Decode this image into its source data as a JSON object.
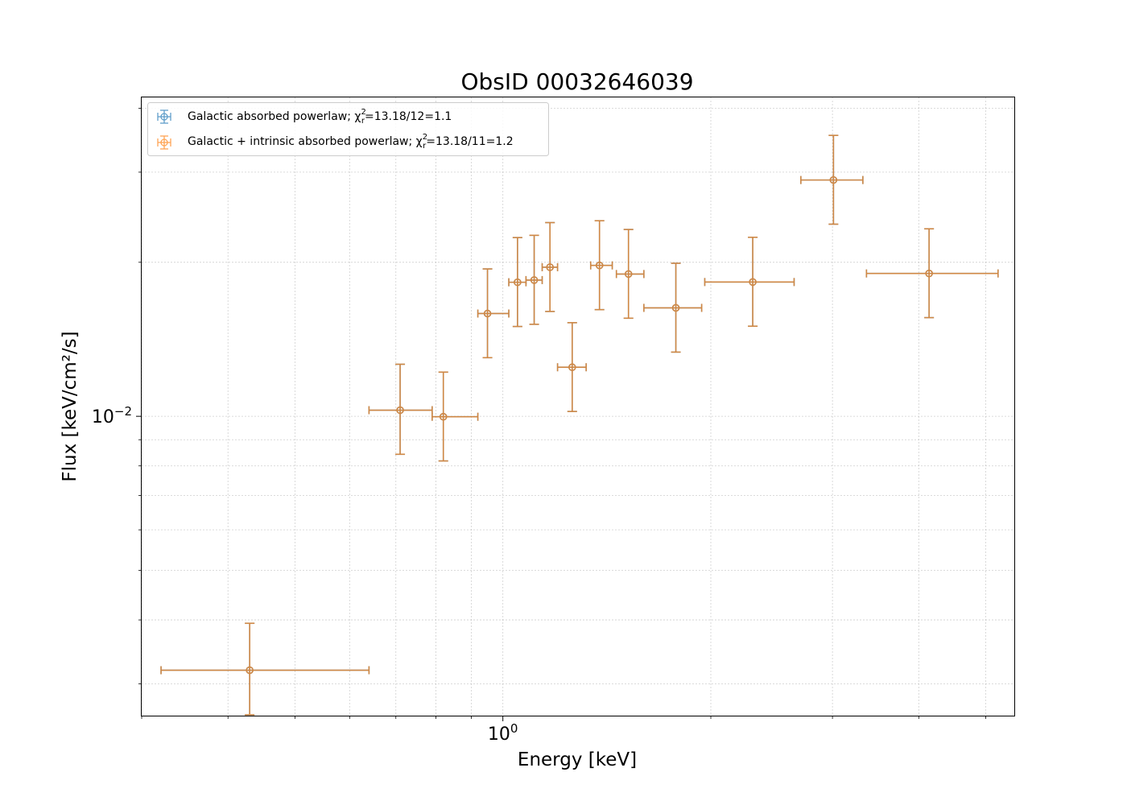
{
  "chart_data": {
    "type": "scatter",
    "title": "ObsID 00032646039",
    "xlabel": "Energy [keV]",
    "ylabel": "Flux [keV/cm²/s]",
    "xscale": "log",
    "yscale": "log",
    "xlim": [
      0.3,
      5.5
    ],
    "ylim": [
      0.0026,
      0.042
    ],
    "grid": true,
    "legend_position": "top-left",
    "x_major_ticks": [
      {
        "value": 1.0,
        "label": "10",
        "exp": "0"
      }
    ],
    "y_major_ticks": [
      {
        "value": 0.01,
        "label": "10",
        "exp": "−2"
      }
    ],
    "series": [
      {
        "name": "Galactic absorbed powerlaw",
        "chi2": "=13.18/12=1.1",
        "color": "#1f77b4",
        "points": [
          {
            "x": 0.43,
            "xlo": 0.32,
            "xhi": 0.64,
            "y": 0.00319,
            "ylo": 0.00261,
            "yhi": 0.00394
          },
          {
            "x": 0.71,
            "xlo": 0.64,
            "xhi": 0.79,
            "y": 0.01028,
            "ylo": 0.00843,
            "yhi": 0.01264
          },
          {
            "x": 0.82,
            "xlo": 0.79,
            "xhi": 0.92,
            "y": 0.00998,
            "ylo": 0.00818,
            "yhi": 0.0122
          },
          {
            "x": 0.95,
            "xlo": 0.92,
            "xhi": 1.02,
            "y": 0.01588,
            "ylo": 0.01302,
            "yhi": 0.01941
          },
          {
            "x": 1.05,
            "xlo": 1.02,
            "xhi": 1.08,
            "y": 0.01828,
            "ylo": 0.01498,
            "yhi": 0.02235
          },
          {
            "x": 1.11,
            "xlo": 1.08,
            "xhi": 1.14,
            "y": 0.01846,
            "ylo": 0.01513,
            "yhi": 0.02258
          },
          {
            "x": 1.17,
            "xlo": 1.14,
            "xhi": 1.2,
            "y": 0.01956,
            "ylo": 0.01603,
            "yhi": 0.02391
          },
          {
            "x": 1.26,
            "xlo": 1.2,
            "xhi": 1.32,
            "y": 0.01247,
            "ylo": 0.01022,
            "yhi": 0.01524
          },
          {
            "x": 1.38,
            "xlo": 1.34,
            "xhi": 1.44,
            "y": 0.01972,
            "ylo": 0.01616,
            "yhi": 0.02411
          },
          {
            "x": 1.52,
            "xlo": 1.46,
            "xhi": 1.6,
            "y": 0.01897,
            "ylo": 0.01555,
            "yhi": 0.02318
          },
          {
            "x": 1.78,
            "xlo": 1.6,
            "xhi": 1.94,
            "y": 0.01629,
            "ylo": 0.01335,
            "yhi": 0.01991
          },
          {
            "x": 2.3,
            "xlo": 1.96,
            "xhi": 2.64,
            "y": 0.0183,
            "ylo": 0.015,
            "yhi": 0.02238
          },
          {
            "x": 3.01,
            "xlo": 2.7,
            "xhi": 3.32,
            "y": 0.02896,
            "ylo": 0.02374,
            "yhi": 0.0354
          },
          {
            "x": 4.14,
            "xlo": 3.36,
            "xhi": 5.21,
            "y": 0.01902,
            "ylo": 0.01559,
            "yhi": 0.02325
          }
        ]
      },
      {
        "name": "Galactic + intrinsic absorbed powerlaw",
        "chi2": "=13.18/11=1.2",
        "color": "#ff7f0e",
        "points": [
          {
            "x": 0.43,
            "xlo": 0.32,
            "xhi": 0.64,
            "y": 0.00319,
            "ylo": 0.00261,
            "yhi": 0.00394
          },
          {
            "x": 0.71,
            "xlo": 0.64,
            "xhi": 0.79,
            "y": 0.01028,
            "ylo": 0.00843,
            "yhi": 0.01264
          },
          {
            "x": 0.82,
            "xlo": 0.79,
            "xhi": 0.92,
            "y": 0.00998,
            "ylo": 0.00818,
            "yhi": 0.0122
          },
          {
            "x": 0.95,
            "xlo": 0.92,
            "xhi": 1.02,
            "y": 0.01588,
            "ylo": 0.01302,
            "yhi": 0.01941
          },
          {
            "x": 1.05,
            "xlo": 1.02,
            "xhi": 1.08,
            "y": 0.01828,
            "ylo": 0.01498,
            "yhi": 0.02235
          },
          {
            "x": 1.11,
            "xlo": 1.08,
            "xhi": 1.14,
            "y": 0.01846,
            "ylo": 0.01513,
            "yhi": 0.02258
          },
          {
            "x": 1.17,
            "xlo": 1.14,
            "xhi": 1.2,
            "y": 0.01956,
            "ylo": 0.01603,
            "yhi": 0.02391
          },
          {
            "x": 1.26,
            "xlo": 1.2,
            "xhi": 1.32,
            "y": 0.01247,
            "ylo": 0.01022,
            "yhi": 0.01524
          },
          {
            "x": 1.38,
            "xlo": 1.34,
            "xhi": 1.44,
            "y": 0.01972,
            "ylo": 0.01616,
            "yhi": 0.02411
          },
          {
            "x": 1.52,
            "xlo": 1.46,
            "xhi": 1.6,
            "y": 0.01897,
            "ylo": 0.01555,
            "yhi": 0.02318
          },
          {
            "x": 1.78,
            "xlo": 1.6,
            "xhi": 1.94,
            "y": 0.01629,
            "ylo": 0.01335,
            "yhi": 0.01991
          },
          {
            "x": 2.3,
            "xlo": 1.96,
            "xhi": 2.64,
            "y": 0.0183,
            "ylo": 0.015,
            "yhi": 0.02238
          },
          {
            "x": 3.01,
            "xlo": 2.7,
            "xhi": 3.32,
            "y": 0.02896,
            "ylo": 0.02374,
            "yhi": 0.0354
          },
          {
            "x": 4.14,
            "xlo": 3.36,
            "xhi": 5.21,
            "y": 0.01902,
            "ylo": 0.01559,
            "yhi": 0.02325
          }
        ]
      }
    ]
  }
}
